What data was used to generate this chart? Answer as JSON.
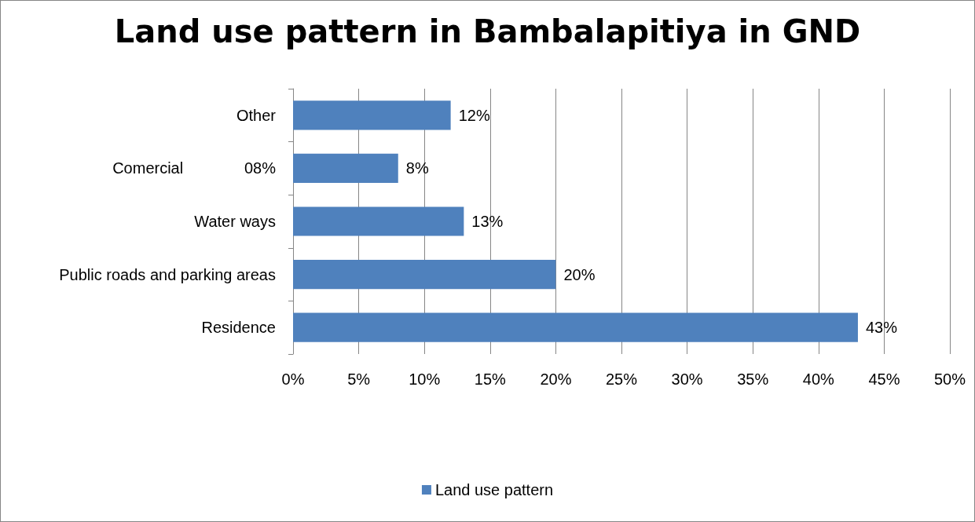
{
  "chart_data": {
    "type": "bar",
    "orientation": "horizontal",
    "title": "Land use pattern in Bambalapitiya in GND",
    "categories": [
      "Other",
      "Comercial              08%",
      "Water ways",
      "Public roads and parking areas",
      "Residence"
    ],
    "series": [
      {
        "name": "Land use pattern",
        "color": "#4f81bd",
        "values": [
          12,
          8,
          13,
          20,
          43
        ],
        "value_labels": [
          "12%",
          "8%",
          "13%",
          "20%",
          "43%"
        ]
      }
    ],
    "xlim": [
      0,
      50
    ],
    "xticks": [
      {
        "value": 0,
        "label": "0%"
      },
      {
        "value": 5,
        "label": "5%"
      },
      {
        "value": 10,
        "label": "10%"
      },
      {
        "value": 15,
        "label": "15%"
      },
      {
        "value": 20,
        "label": "20%"
      },
      {
        "value": 25,
        "label": "25%"
      },
      {
        "value": 30,
        "label": "30%"
      },
      {
        "value": 35,
        "label": "35%"
      },
      {
        "value": 40,
        "label": "40%"
      },
      {
        "value": 45,
        "label": "45%"
      },
      {
        "value": 50,
        "label": "50%"
      }
    ],
    "grid": "x",
    "legend": "bottom"
  }
}
